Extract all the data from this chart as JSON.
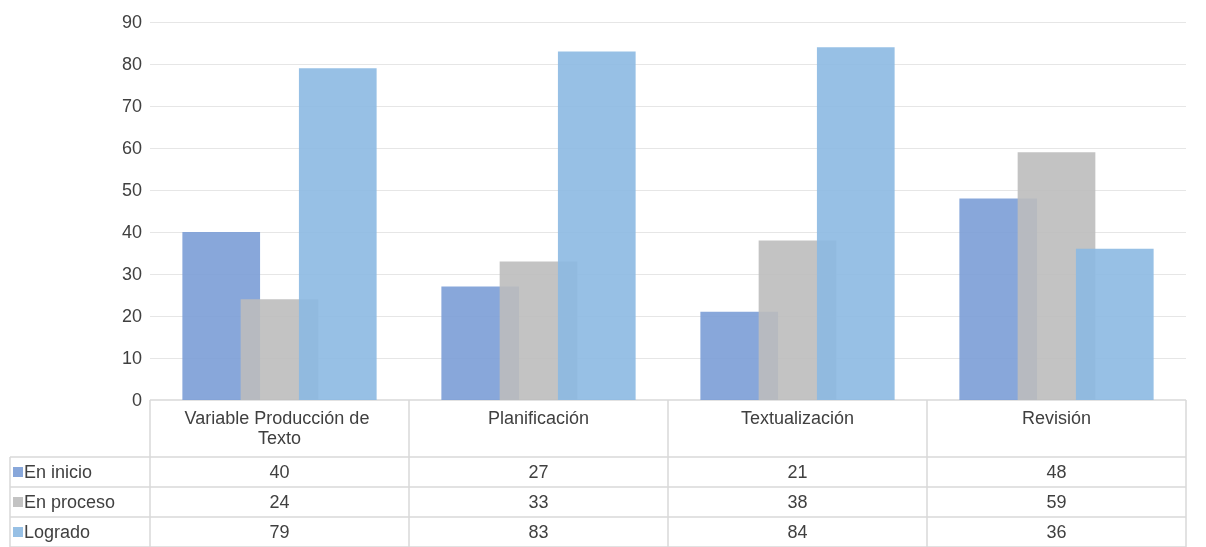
{
  "chart_data": {
    "type": "bar",
    "categories": [
      "Variable Producción de Texto",
      "Planificación",
      "Textualización",
      "Revisión"
    ],
    "series": [
      {
        "name": "En inicio",
        "color": "#7b9dd6",
        "values": [
          40,
          27,
          21,
          48
        ]
      },
      {
        "name": "En proceso",
        "color": "#bdbdbd",
        "values": [
          24,
          33,
          38,
          59
        ]
      },
      {
        "name": "Logrado",
        "color": "#8cb9e2",
        "values": [
          79,
          83,
          84,
          36
        ]
      }
    ],
    "ylim": [
      0,
      90
    ],
    "yticks": [
      0,
      10,
      20,
      30,
      40,
      50,
      60,
      70,
      80,
      90
    ],
    "grid": "y",
    "legend": "bottom left",
    "data_labels": true
  }
}
